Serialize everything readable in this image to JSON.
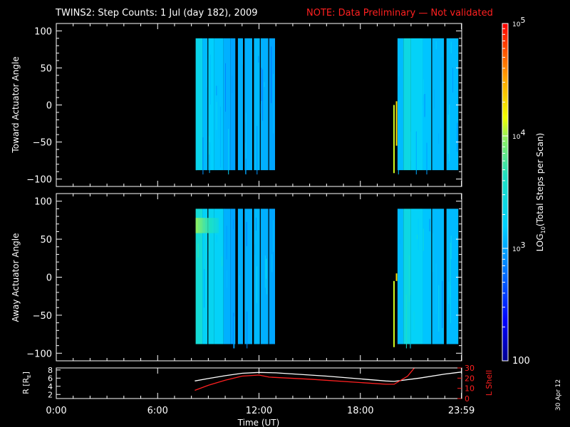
{
  "title": {
    "main": "TWINS2: Step Counts:  1 Jul (day 182), 2009",
    "note": "NOTE: Data Preliminary — Not validated",
    "note_color": "#ff2020"
  },
  "side_label": "30 Apr 12",
  "colors": {
    "background": "#000000",
    "axis": "#ffffff",
    "lshell": "#ff2020",
    "radius": "#ffffff"
  },
  "chart_data": [
    {
      "type": "heatmap",
      "name": "toward",
      "ylabel": "Toward Actuator Angle",
      "xlim": [
        0,
        24
      ],
      "ylim": [
        -110,
        110
      ],
      "yticks": [
        100,
        50,
        0,
        -50,
        -100
      ],
      "ytick_labels": [
        "100",
        "50",
        "0",
        "−50",
        "−100"
      ],
      "angle_range": [
        -88,
        90
      ],
      "blocks": [
        {
          "t": [
            8.25,
            8.65
          ],
          "v": 3.35
        },
        {
          "t": [
            8.65,
            8.95
          ],
          "v": 3.1
        },
        {
          "t": [
            9.0,
            9.35
          ],
          "v": 3.2
        },
        {
          "t": [
            9.35,
            9.9
          ],
          "v": 3.15
        },
        {
          "t": [
            9.9,
            10.3
          ],
          "v": 3.05
        },
        {
          "t": [
            10.3,
            10.6
          ],
          "v": 3.0
        },
        {
          "t": [
            10.75,
            11.05
          ],
          "v": 3.05
        },
        {
          "t": [
            11.15,
            11.6
          ],
          "v": 3.05
        },
        {
          "t": [
            11.7,
            12.05
          ],
          "v": 3.1
        },
        {
          "t": [
            12.1,
            12.55
          ],
          "v": 3.05
        },
        {
          "t": [
            12.6,
            12.95
          ],
          "v": 3.0
        },
        {
          "t": [
            20.2,
            20.55
          ],
          "v": 3.1
        },
        {
          "t": [
            20.55,
            21.0
          ],
          "v": 3.4
        },
        {
          "t": [
            21.0,
            21.7
          ],
          "v": 3.25
        },
        {
          "t": [
            21.7,
            22.2
          ],
          "v": 3.15
        },
        {
          "t": [
            22.25,
            22.95
          ],
          "v": 3.1
        },
        {
          "t": [
            23.1,
            23.8
          ],
          "v": 3.1
        }
      ],
      "spikes": [
        {
          "t": 19.95,
          "a": [
            -92,
            0
          ],
          "v": 4.1
        },
        {
          "t": 20.1,
          "a": [
            -55,
            5
          ],
          "v": 4.3
        }
      ]
    },
    {
      "type": "heatmap",
      "name": "away",
      "ylabel": "Away Actuator Angle",
      "xlim": [
        0,
        24
      ],
      "ylim": [
        -110,
        110
      ],
      "yticks": [
        100,
        50,
        0,
        -50,
        -100
      ],
      "ytick_labels": [
        "100",
        "50",
        "0",
        "−50",
        "−100"
      ],
      "angle_range": [
        -88,
        90
      ],
      "blocks": [
        {
          "t": [
            8.25,
            8.65
          ],
          "v": 3.5
        },
        {
          "t": [
            8.65,
            8.95
          ],
          "v": 3.25
        },
        {
          "t": [
            9.0,
            9.35
          ],
          "v": 3.3
        },
        {
          "t": [
            9.35,
            9.9
          ],
          "v": 3.25
        },
        {
          "t": [
            9.9,
            10.3
          ],
          "v": 3.05
        },
        {
          "t": [
            10.3,
            10.6
          ],
          "v": 3.0
        },
        {
          "t": [
            10.75,
            11.05
          ],
          "v": 3.05
        },
        {
          "t": [
            11.15,
            11.6
          ],
          "v": 3.05
        },
        {
          "t": [
            11.7,
            12.05
          ],
          "v": 3.1
        },
        {
          "t": [
            12.1,
            12.55
          ],
          "v": 3.05
        },
        {
          "t": [
            12.6,
            12.95
          ],
          "v": 3.0
        },
        {
          "t": [
            20.2,
            20.55
          ],
          "v": 3.1
        },
        {
          "t": [
            20.55,
            21.0
          ],
          "v": 3.4
        },
        {
          "t": [
            21.0,
            21.7
          ],
          "v": 3.25
        },
        {
          "t": [
            21.7,
            22.2
          ],
          "v": 3.15
        },
        {
          "t": [
            22.25,
            22.95
          ],
          "v": 3.1
        },
        {
          "t": [
            23.1,
            23.8
          ],
          "v": 3.1
        }
      ],
      "hotspot": {
        "t": [
          8.25,
          9.6
        ],
        "a": [
          58,
          78
        ],
        "v": 4.0
      },
      "spikes": [
        {
          "t": 19.95,
          "a": [
            -92,
            -5
          ],
          "v": 4.1
        },
        {
          "t": 20.1,
          "a": [
            -5,
            5
          ],
          "v": 4.3
        }
      ]
    },
    {
      "type": "line",
      "name": "orbit",
      "ylabel": "R [R",
      "ylabel_sub": "E",
      "ylabel_close": "]",
      "y2label": "L Shell",
      "xlabel": "Time (UT)",
      "xlim": [
        0,
        24
      ],
      "xticks": [
        0,
        6,
        12,
        18,
        23.983
      ],
      "xtick_labels": [
        "0:00",
        "6:00",
        "12:00",
        "18:00",
        "23:59"
      ],
      "ylim": [
        1,
        8.5
      ],
      "yticks": [
        2,
        4,
        6,
        8
      ],
      "y2lim": [
        0,
        30
      ],
      "y2ticks": [
        0,
        10,
        20,
        30
      ],
      "series": [
        {
          "axis": "left",
          "x": [
            8.2,
            9.0,
            10.0,
            11.0,
            12.0,
            13.0,
            16.0,
            19.5,
            20.0,
            21.5,
            23.0,
            24.0
          ],
          "y": [
            5.3,
            5.9,
            6.6,
            7.2,
            7.4,
            7.3,
            6.5,
            5.3,
            5.2,
            6.0,
            7.0,
            7.5
          ]
        },
        {
          "axis": "right",
          "x": [
            8.2,
            9.0,
            10.0,
            11.0,
            12.0,
            12.6,
            15.0,
            19.5,
            20.0,
            20.8,
            21.2
          ],
          "y": [
            8,
            13,
            18,
            22,
            23,
            21,
            19,
            14,
            14,
            22,
            30
          ]
        }
      ]
    }
  ],
  "colorbar": {
    "label": "LOG",
    "label_sub": "10",
    "label_rest": "(Total Steps per Scan)",
    "vmin": 2,
    "vmax": 5,
    "ticks": [
      {
        "v": 5,
        "base": "10",
        "exp": "5"
      },
      {
        "v": 4,
        "base": "10",
        "exp": "4"
      },
      {
        "v": 3,
        "base": "10",
        "exp": "3"
      },
      {
        "v": 2,
        "label": "100"
      }
    ]
  }
}
